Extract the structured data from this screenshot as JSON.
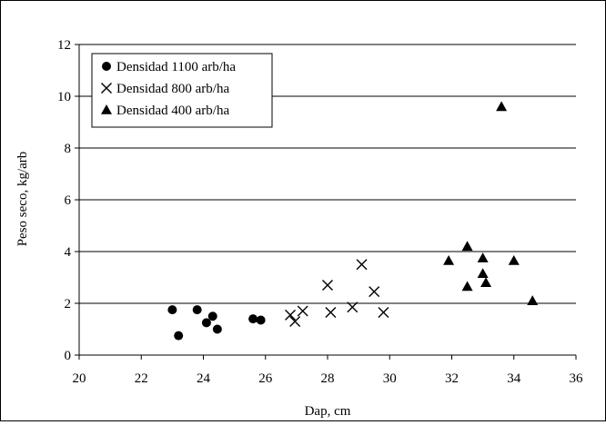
{
  "chart_data": {
    "type": "scatter",
    "xlabel": "Dap, cm",
    "ylabel": "Peso seco, kg/arb",
    "xlim": [
      20,
      36
    ],
    "ylim": [
      0,
      12
    ],
    "x_ticks": [
      20,
      22,
      24,
      26,
      28,
      30,
      32,
      34,
      36
    ],
    "y_ticks": [
      0,
      2,
      4,
      6,
      8,
      10,
      12
    ],
    "grid": "horizontal",
    "legend_position": "top-left",
    "series": [
      {
        "name": "Densidad 1100 arb/ha",
        "marker": "circle",
        "color": "#000000",
        "points": [
          [
            23.0,
            1.75
          ],
          [
            23.2,
            0.75
          ],
          [
            23.8,
            1.75
          ],
          [
            24.1,
            1.25
          ],
          [
            24.3,
            1.5
          ],
          [
            24.45,
            1.0
          ],
          [
            25.6,
            1.4
          ],
          [
            25.85,
            1.35
          ]
        ]
      },
      {
        "name": "Densidad 800 arb/ha",
        "marker": "x",
        "color": "#000000",
        "points": [
          [
            26.8,
            1.55
          ],
          [
            26.95,
            1.3
          ],
          [
            27.2,
            1.7
          ],
          [
            28.0,
            2.7
          ],
          [
            28.1,
            1.65
          ],
          [
            28.8,
            1.85
          ],
          [
            29.1,
            3.5
          ],
          [
            29.5,
            2.45
          ],
          [
            29.8,
            1.65
          ]
        ]
      },
      {
        "name": "Densidad 400 arb/ha",
        "marker": "triangle",
        "color": "#000000",
        "points": [
          [
            31.9,
            3.65
          ],
          [
            32.5,
            4.2
          ],
          [
            32.5,
            2.65
          ],
          [
            33.0,
            3.75
          ],
          [
            33.0,
            3.15
          ],
          [
            33.1,
            2.8
          ],
          [
            33.6,
            9.6
          ],
          [
            34.0,
            3.65
          ],
          [
            34.6,
            2.1
          ]
        ]
      }
    ]
  }
}
